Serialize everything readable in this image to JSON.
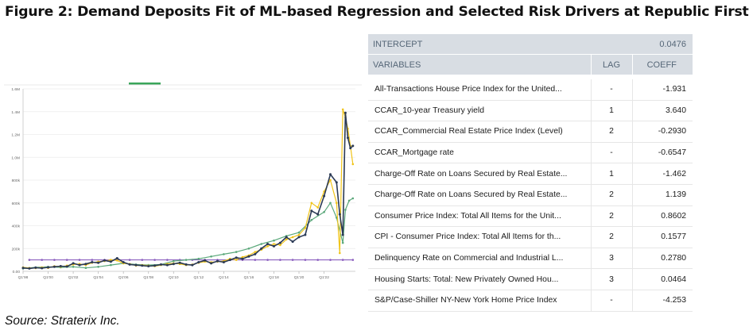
{
  "figure": {
    "title": "Figure 2: Demand Deposits Fit of ML-based Regression and Selected Risk Drivers at Republic First",
    "source": "Source: Straterix Inc."
  },
  "table": {
    "intercept_label": "INTERCEPT",
    "intercept_value": "0.0476",
    "headers": {
      "variables": "VARIABLES",
      "lag": "LAG",
      "coeff": "COEFF"
    },
    "rows": [
      {
        "variable": "All-Transactions House Price Index for the United...",
        "lag": "-",
        "coeff": "-1.931"
      },
      {
        "variable": "CCAR_10-year Treasury yield",
        "lag": "1",
        "coeff": "3.640"
      },
      {
        "variable": "CCAR_Commercial Real Estate Price Index (Level)",
        "lag": "2",
        "coeff": "-0.2930"
      },
      {
        "variable": "CCAR_Mortgage rate",
        "lag": "-",
        "coeff": "-0.6547"
      },
      {
        "variable": "Charge-Off Rate on Loans Secured by Real Estate...",
        "lag": "1",
        "coeff": "-1.462"
      },
      {
        "variable": "Charge-Off Rate on Loans Secured by Real Estate...",
        "lag": "2",
        "coeff": "1.139"
      },
      {
        "variable": "Consumer Price Index: Total All Items for the Unit...",
        "lag": "2",
        "coeff": "0.8602"
      },
      {
        "variable": "CPI - Consumer Price Index: Total All Items for th...",
        "lag": "2",
        "coeff": "0.1577"
      },
      {
        "variable": "Delinquency Rate on Commercial and Industrial L...",
        "lag": "3",
        "coeff": "0.2780"
      },
      {
        "variable": "Housing Starts: Total: New Privately Owned Hou...",
        "lag": "3",
        "coeff": "0.0464"
      },
      {
        "variable": "S&P/Case-Shiller NY-New York Home Price Index",
        "lag": "-",
        "coeff": "-4.253"
      }
    ]
  },
  "chart_data": {
    "type": "line",
    "title": "",
    "xlabel": "",
    "ylabel": "",
    "ylim": [
      0,
      1600000
    ],
    "yticks": [
      {
        "value": 0,
        "label": "0.00"
      },
      {
        "value": 200000,
        "label": "200k"
      },
      {
        "value": 400000,
        "label": "400k"
      },
      {
        "value": 600000,
        "label": "600k"
      },
      {
        "value": 800000,
        "label": "800k"
      },
      {
        "value": 1000000,
        "label": "1.0M"
      },
      {
        "value": 1200000,
        "label": "1.2M"
      },
      {
        "value": 1400000,
        "label": "1.4M"
      },
      {
        "value": 1600000,
        "label": "1.6M"
      }
    ],
    "xlim": [
      1998.0,
      2024.5
    ],
    "xticks": [
      {
        "value": 1998.0,
        "label": "Q1'98"
      },
      {
        "value": 2000.0,
        "label": "Q1'00"
      },
      {
        "value": 2002.0,
        "label": "Q1'02"
      },
      {
        "value": 2004.0,
        "label": "Q1'04"
      },
      {
        "value": 2006.0,
        "label": "Q1'06"
      },
      {
        "value": 2008.0,
        "label": "Q1'08"
      },
      {
        "value": 2010.0,
        "label": "Q1'10"
      },
      {
        "value": 2012.0,
        "label": "Q1'12"
      },
      {
        "value": 2014.0,
        "label": "Q1'14"
      },
      {
        "value": 2016.0,
        "label": "Q1'16"
      },
      {
        "value": 2018.0,
        "label": "Q1'18"
      },
      {
        "value": 2020.0,
        "label": "Q1'20"
      },
      {
        "value": 2022.0,
        "label": "Q1'22"
      }
    ],
    "grid": true,
    "series": [
      {
        "color": "#2b3a55",
        "marker": true,
        "points": [
          [
            1998.0,
            30000
          ],
          [
            1998.5,
            25000
          ],
          [
            1999.0,
            32000
          ],
          [
            1999.5,
            28000
          ],
          [
            2000.0,
            35000
          ],
          [
            2000.5,
            40000
          ],
          [
            2001.0,
            45000
          ],
          [
            2001.5,
            42000
          ],
          [
            2002.0,
            70000
          ],
          [
            2002.5,
            55000
          ],
          [
            2003.0,
            65000
          ],
          [
            2003.5,
            80000
          ],
          [
            2004.0,
            75000
          ],
          [
            2004.5,
            95000
          ],
          [
            2005.0,
            85000
          ],
          [
            2005.5,
            115000
          ],
          [
            2006.0,
            80000
          ],
          [
            2006.5,
            60000
          ],
          [
            2007.0,
            55000
          ],
          [
            2007.5,
            50000
          ],
          [
            2008.0,
            45000
          ],
          [
            2008.5,
            50000
          ],
          [
            2009.0,
            60000
          ],
          [
            2009.5,
            55000
          ],
          [
            2010.0,
            65000
          ],
          [
            2010.5,
            75000
          ],
          [
            2011.0,
            60000
          ],
          [
            2011.5,
            55000
          ],
          [
            2012.0,
            80000
          ],
          [
            2012.5,
            95000
          ],
          [
            2013.0,
            70000
          ],
          [
            2013.5,
            90000
          ],
          [
            2014.0,
            80000
          ],
          [
            2014.5,
            100000
          ],
          [
            2015.0,
            120000
          ],
          [
            2015.5,
            110000
          ],
          [
            2016.0,
            130000
          ],
          [
            2016.5,
            150000
          ],
          [
            2017.0,
            200000
          ],
          [
            2017.5,
            240000
          ],
          [
            2018.0,
            220000
          ],
          [
            2018.5,
            250000
          ],
          [
            2019.0,
            300000
          ],
          [
            2019.5,
            260000
          ],
          [
            2020.0,
            300000
          ],
          [
            2020.5,
            320000
          ],
          [
            2021.0,
            530000
          ],
          [
            2021.5,
            500000
          ],
          [
            2022.0,
            660000
          ],
          [
            2022.5,
            850000
          ],
          [
            2023.0,
            780000
          ],
          [
            2023.25,
            500000
          ],
          [
            2023.5,
            320000
          ],
          [
            2023.7,
            1390000
          ],
          [
            2023.9,
            1170000
          ],
          [
            2024.1,
            1080000
          ],
          [
            2024.3,
            1100000
          ]
        ]
      },
      {
        "color": "#f0c419",
        "marker": true,
        "points": [
          [
            1998.0,
            35000
          ],
          [
            1998.5,
            30000
          ],
          [
            1999.0,
            28000
          ],
          [
            1999.5,
            35000
          ],
          [
            2000.0,
            30000
          ],
          [
            2000.5,
            45000
          ],
          [
            2001.0,
            40000
          ],
          [
            2001.5,
            50000
          ],
          [
            2002.0,
            60000
          ],
          [
            2002.5,
            65000
          ],
          [
            2003.0,
            55000
          ],
          [
            2003.5,
            75000
          ],
          [
            2004.0,
            85000
          ],
          [
            2004.5,
            90000
          ],
          [
            2005.0,
            100000
          ],
          [
            2005.5,
            95000
          ],
          [
            2006.0,
            70000
          ],
          [
            2006.5,
            65000
          ],
          [
            2007.0,
            50000
          ],
          [
            2007.5,
            55000
          ],
          [
            2008.0,
            50000
          ],
          [
            2008.5,
            45000
          ],
          [
            2009.0,
            55000
          ],
          [
            2009.5,
            65000
          ],
          [
            2010.0,
            70000
          ],
          [
            2010.5,
            65000
          ],
          [
            2011.0,
            55000
          ],
          [
            2011.5,
            60000
          ],
          [
            2012.0,
            75000
          ],
          [
            2012.5,
            85000
          ],
          [
            2013.0,
            80000
          ],
          [
            2013.5,
            85000
          ],
          [
            2014.0,
            90000
          ],
          [
            2014.5,
            110000
          ],
          [
            2015.0,
            100000
          ],
          [
            2015.5,
            125000
          ],
          [
            2016.0,
            140000
          ],
          [
            2016.5,
            170000
          ],
          [
            2017.0,
            190000
          ],
          [
            2017.5,
            220000
          ],
          [
            2018.0,
            240000
          ],
          [
            2018.5,
            230000
          ],
          [
            2019.0,
            280000
          ],
          [
            2019.5,
            300000
          ],
          [
            2020.0,
            320000
          ],
          [
            2020.5,
            380000
          ],
          [
            2021.0,
            600000
          ],
          [
            2021.5,
            560000
          ],
          [
            2022.0,
            700000
          ],
          [
            2022.5,
            800000
          ],
          [
            2023.0,
            600000
          ],
          [
            2023.25,
            160000
          ],
          [
            2023.5,
            1420000
          ],
          [
            2023.7,
            1350000
          ],
          [
            2023.9,
            1250000
          ],
          [
            2024.1,
            1100000
          ],
          [
            2024.3,
            940000
          ]
        ]
      },
      {
        "color": "#5aa87a",
        "marker": true,
        "points": [
          [
            1998.0,
            25000
          ],
          [
            1999.0,
            35000
          ],
          [
            2000.0,
            40000
          ],
          [
            2001.0,
            35000
          ],
          [
            2002.0,
            40000
          ],
          [
            2003.0,
            30000
          ],
          [
            2004.0,
            40000
          ],
          [
            2005.0,
            55000
          ],
          [
            2006.0,
            70000
          ],
          [
            2007.0,
            60000
          ],
          [
            2008.0,
            55000
          ],
          [
            2009.0,
            60000
          ],
          [
            2010.0,
            90000
          ],
          [
            2011.0,
            100000
          ],
          [
            2012.0,
            110000
          ],
          [
            2013.0,
            130000
          ],
          [
            2014.0,
            150000
          ],
          [
            2015.0,
            170000
          ],
          [
            2016.0,
            200000
          ],
          [
            2017.0,
            240000
          ],
          [
            2018.0,
            270000
          ],
          [
            2019.0,
            310000
          ],
          [
            2020.0,
            340000
          ],
          [
            2021.0,
            450000
          ],
          [
            2022.0,
            520000
          ],
          [
            2022.5,
            600000
          ],
          [
            2023.0,
            470000
          ],
          [
            2023.5,
            250000
          ],
          [
            2023.7,
            540000
          ],
          [
            2024.0,
            620000
          ],
          [
            2024.3,
            640000
          ]
        ]
      },
      {
        "color": "#8b5fbf",
        "marker": true,
        "points": [
          [
            1998.5,
            100000
          ],
          [
            1999.5,
            100000
          ],
          [
            2000.5,
            100000
          ],
          [
            2001.5,
            100000
          ],
          [
            2002.5,
            100000
          ],
          [
            2003.5,
            100000
          ],
          [
            2004.5,
            100000
          ],
          [
            2005.5,
            100000
          ],
          [
            2006.5,
            100000
          ],
          [
            2007.5,
            100000
          ],
          [
            2008.5,
            100000
          ],
          [
            2009.5,
            100000
          ],
          [
            2010.5,
            100000
          ],
          [
            2011.5,
            100000
          ],
          [
            2012.5,
            100000
          ],
          [
            2013.5,
            100000
          ],
          [
            2014.5,
            100000
          ],
          [
            2015.5,
            100000
          ],
          [
            2016.5,
            100000
          ],
          [
            2017.5,
            100000
          ],
          [
            2018.5,
            100000
          ],
          [
            2019.5,
            100000
          ],
          [
            2020.5,
            100000
          ],
          [
            2021.5,
            100000
          ],
          [
            2022.5,
            100000
          ],
          [
            2023.5,
            100000
          ],
          [
            2024.3,
            100000
          ]
        ]
      }
    ]
  }
}
